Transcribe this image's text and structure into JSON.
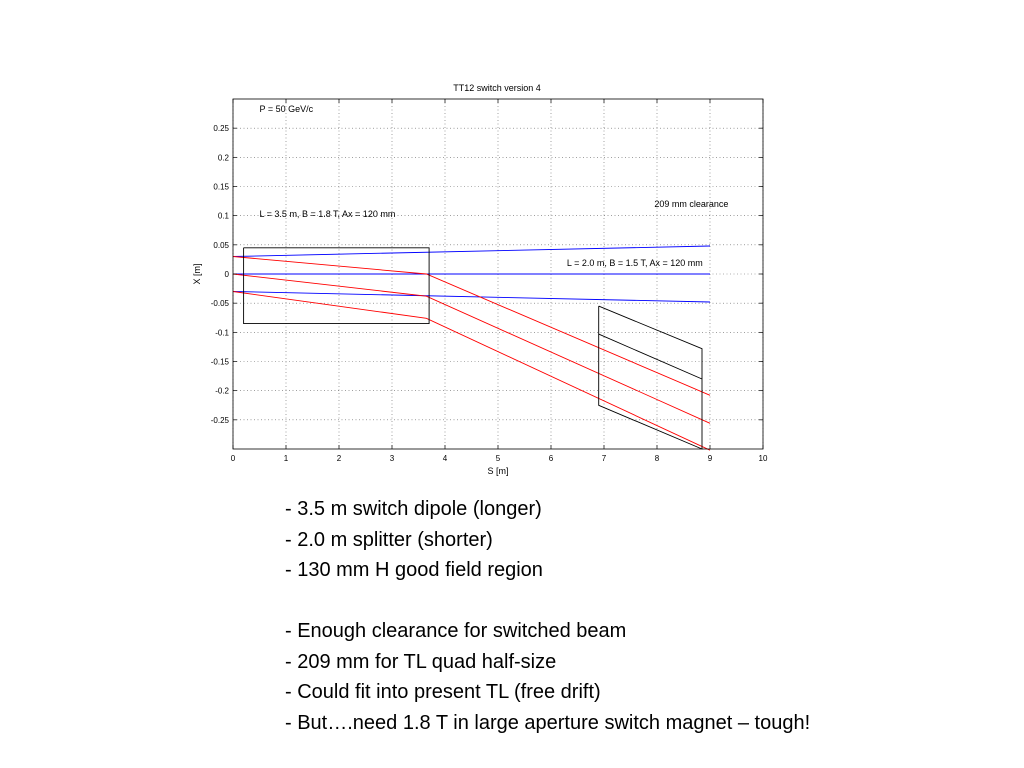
{
  "chart_data": {
    "type": "line",
    "title": "TT12 switch version 4",
    "xlabel": "S [m]",
    "ylabel": "X [m]",
    "xlim": [
      0,
      10
    ],
    "ylim": [
      -0.3,
      0.3
    ],
    "xticks": [
      "0",
      "1",
      "2",
      "3",
      "4",
      "5",
      "6",
      "7",
      "8",
      "9",
      "10"
    ],
    "yticks": [
      "-0.25",
      "-0.2",
      "-0.15",
      "-0.1",
      "-0.05",
      "0",
      "0.05",
      "0.1",
      "0.15",
      "0.2",
      "0.25"
    ],
    "grid": true,
    "annotations": [
      {
        "text": "P = 50 GeV/c",
        "x": 0.5,
        "y": 0.278
      },
      {
        "text": "L = 3.5 m, B = 1.8 T, Ax = 120 mm",
        "x": 0.5,
        "y": 0.098
      },
      {
        "text": "209 mm clearance",
        "x": 7.95,
        "y": 0.115
      },
      {
        "text": "L = 2.0 m, B = 1.5 T, Ax = 120 mm",
        "x": 6.3,
        "y": 0.014
      }
    ],
    "series": [
      {
        "color": "#0000ff",
        "x": [
          0,
          9
        ],
        "y": [
          0.03,
          0.048
        ]
      },
      {
        "color": "#0000ff",
        "x": [
          0,
          9
        ],
        "y": [
          0,
          0
        ]
      },
      {
        "color": "#0000ff",
        "x": [
          0,
          9
        ],
        "y": [
          -0.03,
          -0.048
        ]
      },
      {
        "color": "#ff0000",
        "x": [
          0,
          3.65,
          9
        ],
        "y": [
          0.03,
          0,
          -0.208
        ]
      },
      {
        "color": "#ff0000",
        "x": [
          0,
          3.65,
          9
        ],
        "y": [
          0,
          -0.038,
          -0.256
        ]
      },
      {
        "color": "#ff0000",
        "x": [
          0,
          3.65,
          9
        ],
        "y": [
          -0.03,
          -0.076,
          -0.302
        ]
      },
      {
        "color": "#000000",
        "x": [
          6.9,
          8.85
        ],
        "y": [
          -0.103,
          -0.18
        ]
      },
      {
        "color": "#000000",
        "x": [
          0.2,
          3.7,
          3.7,
          0.2,
          0.2
        ],
        "y": [
          0.045,
          0.045,
          -0.085,
          -0.085,
          0.045
        ]
      },
      {
        "color": "#000000",
        "x": [
          6.9,
          8.85,
          8.85,
          6.9,
          6.9
        ],
        "y": [
          -0.055,
          -0.128,
          -0.3,
          -0.225,
          -0.055
        ]
      }
    ]
  },
  "bullets": [
    "- 3.5 m switch dipole (longer)",
    "- 2.0 m splitter (shorter)",
    "- 130 mm H good field region",
    "",
    "- Enough clearance for switched beam",
    "- 209 mm for TL quad half-size",
    "- Could fit into present TL (free drift)",
    "- But….need 1.8 T in large aperture switch magnet – tough!"
  ]
}
